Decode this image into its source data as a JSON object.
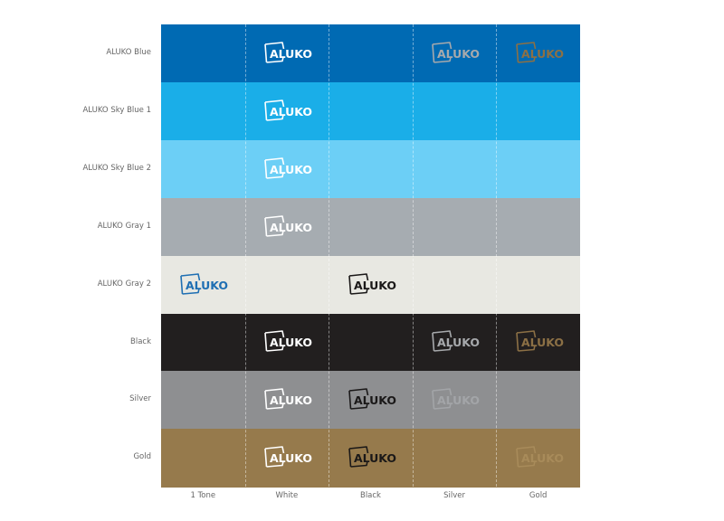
{
  "logo": {
    "text": "ALUKO"
  },
  "rows": [
    {
      "label": "ALUKO Blue",
      "color": "#006ab3"
    },
    {
      "label": "ALUKO Sky Blue 1",
      "color": "#1aaee8"
    },
    {
      "label": "ALUKO Sky Blue 2",
      "color": "#6ccff6"
    },
    {
      "label": "ALUKO Gray 1",
      "color": "#a6acb1"
    },
    {
      "label": "ALUKO Gray 2",
      "color": "#e8e8e2"
    },
    {
      "label": "Black",
      "color": "#221f1f"
    },
    {
      "label": "Silver",
      "color": "#8e8f91"
    },
    {
      "label": "Gold",
      "color": "#967a4c"
    }
  ],
  "columns": [
    {
      "label": "1 Tone"
    },
    {
      "label": "White"
    },
    {
      "label": "Black"
    },
    {
      "label": "Silver"
    },
    {
      "label": "Gold"
    }
  ],
  "swatches": {
    "onetone_blue": "#1f6fb3",
    "white": "#ffffff",
    "black": "#1a1818",
    "silver": "#a7a9ac",
    "gold": "#8c7045",
    "silver_on_silver": "#a3a5a8",
    "gold_on_gold": "#a88b5a"
  },
  "cells": [
    {
      "row": 0,
      "col": 1,
      "tone": "white"
    },
    {
      "row": 0,
      "col": 3,
      "tone": "silver"
    },
    {
      "row": 0,
      "col": 4,
      "tone": "gold"
    },
    {
      "row": 1,
      "col": 1,
      "tone": "white"
    },
    {
      "row": 2,
      "col": 1,
      "tone": "white"
    },
    {
      "row": 3,
      "col": 1,
      "tone": "white"
    },
    {
      "row": 4,
      "col": 0,
      "tone": "onetone_blue"
    },
    {
      "row": 4,
      "col": 2,
      "tone": "black"
    },
    {
      "row": 5,
      "col": 1,
      "tone": "white"
    },
    {
      "row": 5,
      "col": 3,
      "tone": "silver"
    },
    {
      "row": 5,
      "col": 4,
      "tone": "gold"
    },
    {
      "row": 6,
      "col": 1,
      "tone": "white"
    },
    {
      "row": 6,
      "col": 2,
      "tone": "black"
    },
    {
      "row": 6,
      "col": 3,
      "tone": "silver_on_silver"
    },
    {
      "row": 7,
      "col": 1,
      "tone": "white"
    },
    {
      "row": 7,
      "col": 2,
      "tone": "black"
    },
    {
      "row": 7,
      "col": 4,
      "tone": "gold_on_gold"
    }
  ]
}
